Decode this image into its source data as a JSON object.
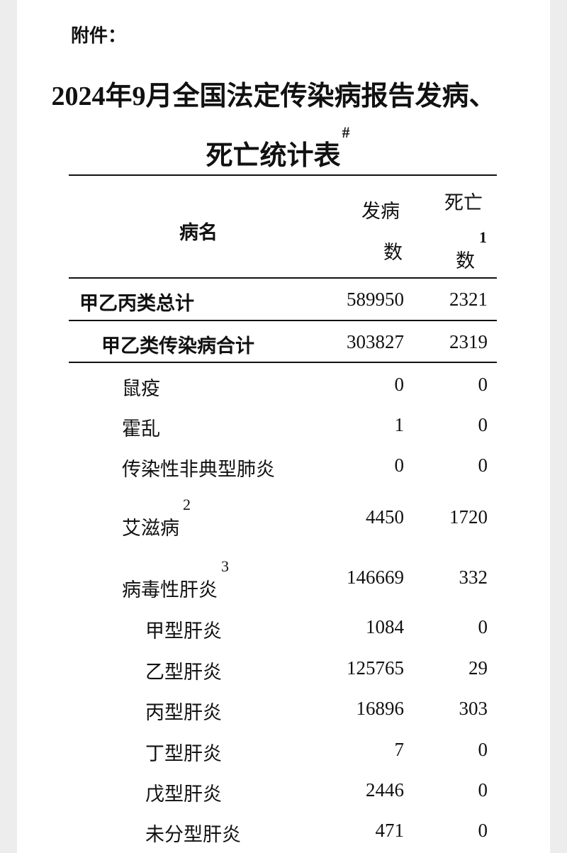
{
  "attachment_label": "附件：",
  "title_line1": "2024年9月全国法定传染病报告发病、",
  "title_line2": "死亡统计表",
  "title_mark": "#",
  "header": {
    "disease": "病名",
    "cases_line1": "发病",
    "cases_line2": "数",
    "deaths_line1": "死亡",
    "deaths_line2": "数",
    "deaths_note": "1"
  },
  "rows": [
    {
      "label": "甲乙丙类总计",
      "level": 0,
      "bold": true,
      "cases": "589950",
      "deaths": "2321"
    },
    {
      "label": "甲乙类传染病合计",
      "level": 1,
      "bold": true,
      "cases": "303827",
      "deaths": "2319"
    },
    {
      "label": "鼠疫",
      "level": 2,
      "cases": "0",
      "deaths": "0"
    },
    {
      "label": "霍乱",
      "level": 2,
      "cases": "1",
      "deaths": "0"
    },
    {
      "label": "传染性非典型肺炎",
      "level": 2,
      "cases": "0",
      "deaths": "0"
    },
    {
      "label": "艾滋病",
      "level": 2,
      "note": "2",
      "cases": "4450",
      "deaths": "1720"
    },
    {
      "label": "病毒性肝炎",
      "level": 2,
      "note": "3",
      "cases": "146669",
      "deaths": "332"
    },
    {
      "label": "甲型肝炎",
      "level": 3,
      "cases": "1084",
      "deaths": "0"
    },
    {
      "label": "乙型肝炎",
      "level": 3,
      "cases": "125765",
      "deaths": "29"
    },
    {
      "label": "丙型肝炎",
      "level": 3,
      "cases": "16896",
      "deaths": "303"
    },
    {
      "label": "丁型肝炎",
      "level": 3,
      "cases": "7",
      "deaths": "0"
    },
    {
      "label": "戊型肝炎",
      "level": 3,
      "cases": "2446",
      "deaths": "0"
    },
    {
      "label": "未分型肝炎",
      "level": 3,
      "cases": "471",
      "deaths": "0"
    }
  ]
}
